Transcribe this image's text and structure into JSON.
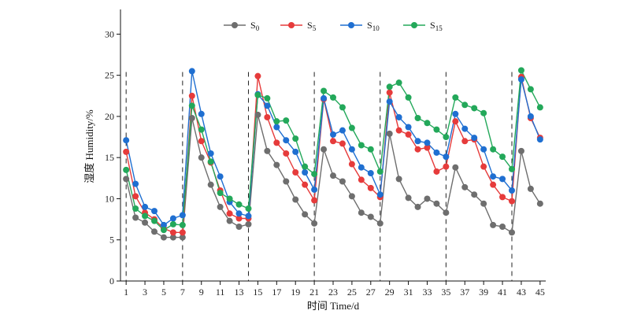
{
  "chart_data": {
    "type": "line",
    "xlabel": "时间 Time/d",
    "ylabel": "湿度 Humidity/%",
    "xlim": [
      0.4,
      45.6
    ],
    "ylim": [
      0,
      33
    ],
    "xticks": [
      1,
      3,
      5,
      7,
      9,
      11,
      13,
      15,
      17,
      19,
      21,
      23,
      25,
      27,
      29,
      31,
      33,
      35,
      37,
      39,
      41,
      43,
      45
    ],
    "yticks": [
      0,
      5,
      10,
      15,
      20,
      25,
      30
    ],
    "vlines": [
      1,
      7,
      14,
      21,
      28,
      35,
      42
    ],
    "legend": {
      "position": "top-center"
    },
    "series": [
      {
        "name": "S",
        "sub": "0",
        "color": "#6e6e6e",
        "x": [
          1,
          2,
          3,
          4,
          5,
          6,
          7,
          8,
          9,
          10,
          11,
          12,
          13,
          14,
          15,
          16,
          17,
          18,
          19,
          20,
          21,
          22,
          23,
          24,
          25,
          26,
          27,
          28,
          29,
          30,
          31,
          32,
          33,
          34,
          35,
          36,
          37,
          38,
          39,
          40,
          41,
          42,
          43,
          44,
          45
        ],
        "values": [
          12.4,
          7.7,
          7.1,
          6.0,
          5.3,
          5.3,
          5.3,
          19.8,
          15.0,
          11.7,
          9.0,
          7.3,
          6.6,
          6.9,
          20.2,
          15.8,
          14.1,
          12.1,
          9.9,
          8.1,
          7.0,
          16.0,
          12.8,
          12.1,
          10.3,
          8.3,
          7.8,
          7.0,
          17.9,
          12.4,
          10.1,
          9.0,
          10.0,
          9.4,
          8.3,
          13.8,
          11.4,
          10.5,
          9.4,
          6.8,
          6.6,
          5.9,
          15.8,
          11.2,
          9.4
        ]
      },
      {
        "name": "S",
        "sub": "5",
        "color": "#e63b3b",
        "x": [
          1,
          2,
          3,
          4,
          5,
          6,
          7,
          8,
          9,
          10,
          11,
          12,
          13,
          14,
          15,
          16,
          17,
          18,
          19,
          20,
          21,
          22,
          23,
          24,
          25,
          26,
          27,
          28,
          29,
          30,
          31,
          32,
          33,
          34,
          35,
          36,
          37,
          38,
          39,
          40,
          41,
          42,
          43,
          44,
          45
        ],
        "values": [
          15.7,
          10.3,
          8.3,
          7.5,
          6.4,
          5.9,
          5.9,
          22.5,
          17.0,
          14.4,
          11.0,
          8.2,
          7.6,
          7.6,
          24.9,
          19.9,
          16.8,
          15.5,
          13.2,
          11.7,
          9.8,
          22.1,
          17.0,
          16.7,
          14.2,
          12.3,
          11.3,
          10.2,
          22.9,
          18.3,
          17.8,
          16.0,
          16.2,
          13.3,
          13.9,
          19.4,
          17.0,
          17.2,
          13.9,
          11.7,
          10.2,
          9.7,
          24.8,
          19.8,
          17.4
        ]
      },
      {
        "name": "S",
        "sub": "10",
        "color": "#1f6fd1",
        "x": [
          1,
          2,
          3,
          4,
          5,
          6,
          7,
          8,
          9,
          10,
          11,
          12,
          13,
          14,
          15,
          16,
          17,
          18,
          19,
          20,
          21,
          22,
          23,
          24,
          25,
          26,
          27,
          28,
          29,
          30,
          31,
          32,
          33,
          34,
          35,
          36,
          37,
          38,
          39,
          40,
          41,
          42,
          43,
          44,
          45
        ],
        "values": [
          17.1,
          11.8,
          9.0,
          8.5,
          6.8,
          7.6,
          8.0,
          25.5,
          20.3,
          15.5,
          12.7,
          9.6,
          8.2,
          7.9,
          22.7,
          21.3,
          18.7,
          17.1,
          15.7,
          13.2,
          11.1,
          22.2,
          17.8,
          18.3,
          16.0,
          13.8,
          13.1,
          10.5,
          21.8,
          19.9,
          18.7,
          17.0,
          16.8,
          15.6,
          15.1,
          20.3,
          18.5,
          17.4,
          16.0,
          12.7,
          12.4,
          11.0,
          24.5,
          20.0,
          17.2
        ]
      },
      {
        "name": "S",
        "sub": "15",
        "color": "#23a85a",
        "x": [
          1,
          2,
          3,
          4,
          5,
          6,
          7,
          8,
          9,
          10,
          11,
          12,
          13,
          14,
          15,
          16,
          17,
          18,
          19,
          20,
          21,
          22,
          23,
          24,
          25,
          26,
          27,
          28,
          29,
          30,
          31,
          32,
          33,
          34,
          35,
          36,
          37,
          38,
          39,
          40,
          41,
          42,
          43,
          44,
          45
        ],
        "values": [
          13.5,
          8.8,
          7.9,
          7.3,
          6.2,
          6.9,
          6.8,
          21.3,
          18.4,
          14.5,
          10.7,
          10.0,
          9.3,
          8.8,
          22.6,
          22.2,
          19.4,
          19.5,
          17.3,
          13.9,
          13.0,
          23.1,
          22.3,
          21.1,
          18.6,
          16.5,
          16.0,
          13.3,
          23.6,
          24.1,
          22.3,
          19.8,
          19.2,
          18.4,
          17.5,
          22.3,
          21.4,
          21.0,
          20.4,
          16.0,
          15.1,
          13.6,
          25.6,
          23.3,
          21.1
        ]
      }
    ]
  }
}
